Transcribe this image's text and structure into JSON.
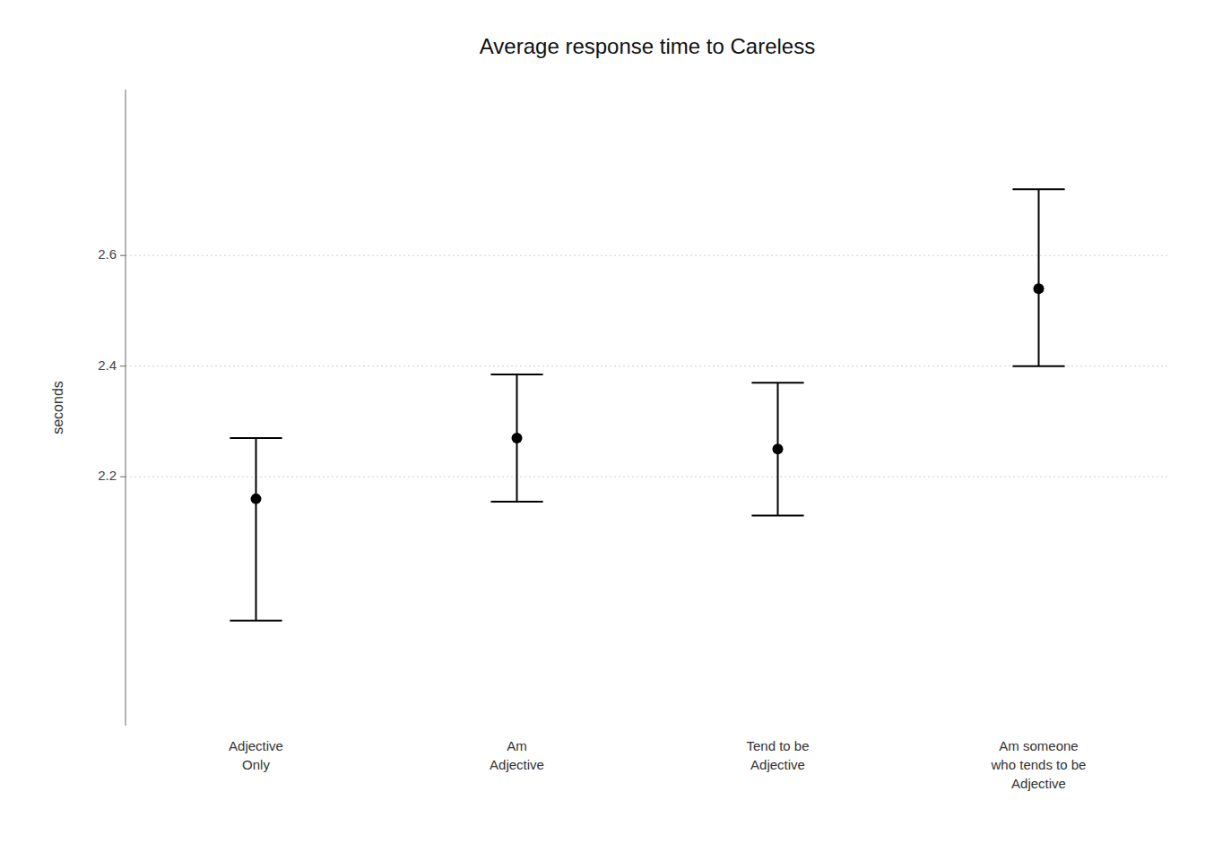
{
  "chart_data": {
    "type": "errorbar",
    "title": "Average response time to Careless",
    "ylabel": "seconds",
    "categories": [
      "Adjective\nOnly",
      "Am\nAdjective",
      "Tend to be\nAdjective",
      "Am someone\nwho tends to be\nAdjective"
    ],
    "values": [
      2.16,
      2.27,
      2.25,
      2.54
    ],
    "error_upper": [
      2.27,
      2.385,
      2.37,
      2.72
    ],
    "error_lower": [
      1.94,
      2.155,
      2.13,
      2.4
    ],
    "ylim": [
      1.75,
      2.9
    ],
    "yticks": [
      2.2,
      2.4,
      2.6
    ],
    "grid": true,
    "color": "#000000"
  }
}
